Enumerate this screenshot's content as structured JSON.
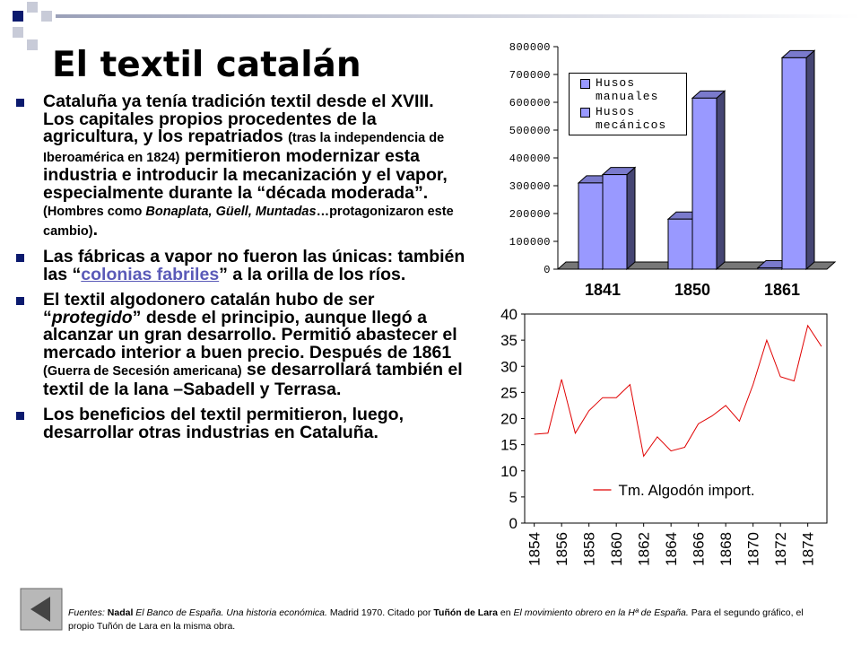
{
  "slide": {
    "title": "El textil catalán",
    "bullets": [
      [
        "Cataluña ya tenía tradición textil desde el XVIII. Los capitales propios procedentes de la agricultura, y los repatriados ",
        "(tras la independencia de Iberoamérica en 1824)",
        " permitieron modernizar esta industria e introducir la mecanización y el vapor, especialmente durante la “década moderada”. ",
        "(Hombres como ",
        "Bonaplata, Güell, Muntadas",
        "…protagonizaron este cambio)",
        "."
      ],
      [
        "Las fábricas a vapor no fueron las únicas: también las “",
        "colonias fabriles",
        "” a la orilla de los ríos."
      ],
      [
        "El textil algodonero catalán hubo de ser “",
        "protegido",
        "” desde el principio, aunque llegó a alcanzar un gran desarrollo. Permitió abastecer el mercado interior a buen precio. Después de 1861 ",
        "(Guerra de Secesión americana)",
        " se desarrollará también el textil de la lana –Sabadell y Terrasa."
      ],
      [
        "Los beneficios del textil permitieron, luego, desarrollar otras industrias en Cataluña."
      ]
    ],
    "footer": [
      "Fuentes: ",
      "Nadal",
      " El Banco de España. Una historia económica.",
      " Madrid 1970. Citado por ",
      "Tuñón de Lara",
      " en ",
      "El movimiento obrero en la Hª de España.",
      " Para el segundo gráfico, el propio Tuñón de Lara en la misma obra."
    ]
  },
  "chart_data": [
    {
      "type": "bar",
      "3d": true,
      "categories": [
        "1841",
        "1850",
        "1861"
      ],
      "series": [
        {
          "name": "Husos manuales",
          "color": "#9999ff",
          "values": [
            310000,
            180000,
            5000
          ]
        },
        {
          "name": "Husos mecánicos",
          "color": "#9999ff",
          "values": [
            340000,
            615000,
            760000
          ]
        }
      ],
      "ylim": [
        0,
        800000
      ],
      "yticks": [
        0,
        100000,
        200000,
        300000,
        400000,
        500000,
        600000,
        700000,
        800000
      ],
      "legend": "upper left"
    },
    {
      "type": "line",
      "x": [
        1854,
        1855,
        1856,
        1857,
        1858,
        1859,
        1860,
        1861,
        1862,
        1863,
        1864,
        1865,
        1866,
        1867,
        1868,
        1869,
        1870,
        1871,
        1872,
        1873,
        1874,
        1875
      ],
      "series": [
        {
          "name": "Tm. Algodón import.",
          "color": "#e00000",
          "values": [
            17,
            17.2,
            27.5,
            17.2,
            21.5,
            24,
            24,
            26.5,
            12.8,
            16.5,
            13.8,
            14.5,
            19,
            20.5,
            22.5,
            19.5,
            26.5,
            35,
            28,
            27.2,
            37.8,
            33.8
          ]
        }
      ],
      "xlim": [
        1853.3,
        1875.4
      ],
      "xticks": [
        1854,
        1856,
        1858,
        1860,
        1862,
        1864,
        1866,
        1868,
        1870,
        1872,
        1874
      ],
      "ylim": [
        0,
        40
      ],
      "yticks": [
        0,
        5,
        10,
        15,
        20,
        25,
        30,
        35,
        40
      ],
      "legend": "lower center"
    }
  ]
}
